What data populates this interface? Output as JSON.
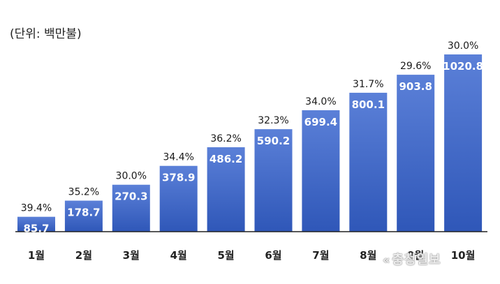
{
  "unit_label": "(단위: 백만불)",
  "watermark": "충청일보",
  "watermark_icon": "double-chevron-logo-icon",
  "colors": {
    "bar_top": "#5b80d8",
    "bar_bottom": "#2f57b8",
    "bar_label": "#ffffff",
    "pct_label": "#1a1a1a",
    "axis": "#222222"
  },
  "chart_data": {
    "type": "bar",
    "title": "",
    "xlabel": "",
    "ylabel": "",
    "categories": [
      "1월",
      "2월",
      "3월",
      "4월",
      "5월",
      "6월",
      "7월",
      "8월",
      "9월",
      "10월"
    ],
    "values": [
      85.7,
      178.7,
      270.3,
      378.9,
      486.2,
      590.2,
      699.4,
      800.1,
      903.8,
      1020.8
    ],
    "value_labels": [
      "85.7",
      "178.7",
      "270.3",
      "378.9",
      "486.2",
      "590.2",
      "699.4",
      "800.1",
      "903.8",
      "1020.8"
    ],
    "annotations": [
      "39.4%",
      "35.2%",
      "30.0%",
      "34.4%",
      "36.2%",
      "32.3%",
      "34.0%",
      "31.7%",
      "29.6%",
      "30.0%"
    ],
    "ylim": [
      0,
      1020.8
    ],
    "grid": false,
    "legend": "none"
  }
}
